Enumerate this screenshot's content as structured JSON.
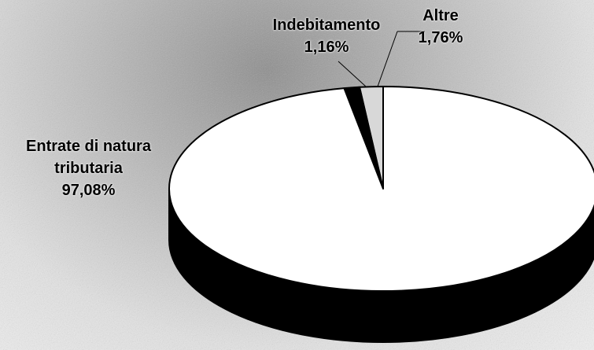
{
  "chart_data": {
    "type": "pie",
    "categories": [
      "Entrate di natura tributaria",
      "Indebitamento",
      "Altre"
    ],
    "values": [
      97.08,
      1.16,
      1.76
    ],
    "value_labels": [
      "97,08%",
      "1,16%",
      "1,76%"
    ],
    "colors": [
      "#ffffff",
      "#000000",
      "#d8d8d8"
    ]
  }
}
